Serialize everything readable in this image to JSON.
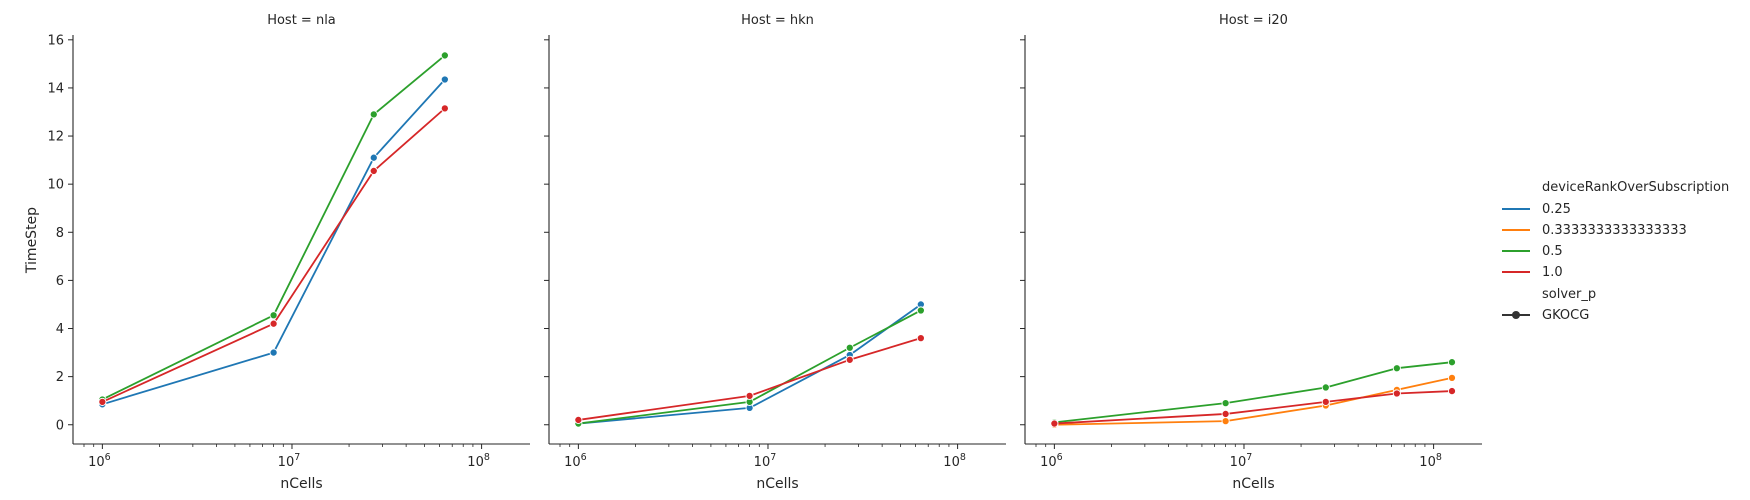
{
  "chart_data": {
    "type": "line",
    "xlabel": "nCells",
    "ylabel": "TimeStep",
    "xscale": "log",
    "xlim": [
      700000,
      180000000
    ],
    "ylim": [
      -0.8,
      16.2
    ],
    "x_ticks": [
      {
        "value": 1000000,
        "base": "10",
        "exp": "6"
      },
      {
        "value": 10000000,
        "base": "10",
        "exp": "7"
      },
      {
        "value": 100000000,
        "base": "10",
        "exp": "8"
      }
    ],
    "y_ticks": [
      "0",
      "2",
      "4",
      "6",
      "8",
      "10",
      "12",
      "14",
      "16"
    ],
    "grid": false,
    "legend_position": "right",
    "legend": {
      "hue_title": "deviceRankOverSubscription",
      "hue_entries": [
        {
          "label": "0.25",
          "color": "#1f77b4"
        },
        {
          "label": "0.3333333333333333",
          "color": "#ff7f0e"
        },
        {
          "label": "0.5",
          "color": "#2ca02c"
        },
        {
          "label": "1.0",
          "color": "#d62728"
        }
      ],
      "style_title": "solver_p",
      "style_entries": [
        {
          "label": "GKOCG",
          "color": "#333333"
        }
      ]
    },
    "panels": [
      {
        "title": "Host = nla",
        "series": [
          {
            "name": "0.25",
            "color": "#1f77b4",
            "x": [
              1000000,
              8000000,
              27000000,
              64000000
            ],
            "y": [
              0.85,
              3.0,
              11.1,
              14.35
            ]
          },
          {
            "name": "0.5",
            "color": "#2ca02c",
            "x": [
              1000000,
              8000000,
              27000000,
              64000000
            ],
            "y": [
              1.05,
              4.55,
              12.9,
              15.35
            ]
          },
          {
            "name": "1.0",
            "color": "#d62728",
            "x": [
              1000000,
              8000000,
              27000000,
              64000000
            ],
            "y": [
              0.95,
              4.2,
              10.55,
              13.15
            ]
          }
        ]
      },
      {
        "title": "Host = hkn",
        "series": [
          {
            "name": "0.25",
            "color": "#1f77b4",
            "x": [
              1000000,
              8000000,
              27000000,
              64000000
            ],
            "y": [
              0.05,
              0.7,
              2.9,
              5.0
            ]
          },
          {
            "name": "0.5",
            "color": "#2ca02c",
            "x": [
              1000000,
              8000000,
              27000000,
              64000000
            ],
            "y": [
              0.05,
              0.95,
              3.2,
              4.75
            ]
          },
          {
            "name": "1.0",
            "color": "#d62728",
            "x": [
              1000000,
              8000000,
              27000000,
              64000000
            ],
            "y": [
              0.2,
              1.2,
              2.7,
              3.6
            ]
          }
        ]
      },
      {
        "title": "Host = i20",
        "series": [
          {
            "name": "0.3333333333333333",
            "color": "#ff7f0e",
            "x": [
              1000000,
              8000000,
              27000000,
              64000000,
              125000000
            ],
            "y": [
              0.0,
              0.15,
              0.8,
              1.45,
              1.95
            ]
          },
          {
            "name": "0.5",
            "color": "#2ca02c",
            "x": [
              1000000,
              8000000,
              27000000,
              64000000,
              125000000
            ],
            "y": [
              0.1,
              0.9,
              1.55,
              2.35,
              2.6
            ]
          },
          {
            "name": "1.0",
            "color": "#d62728",
            "x": [
              1000000,
              8000000,
              27000000,
              64000000,
              125000000
            ],
            "y": [
              0.05,
              0.45,
              0.95,
              1.3,
              1.4
            ]
          }
        ]
      }
    ]
  }
}
